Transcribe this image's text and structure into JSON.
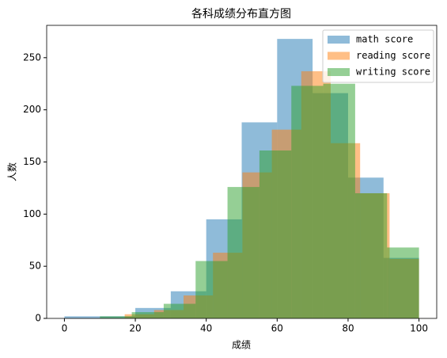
{
  "chart_data": {
    "type": "histogram",
    "title": "各科成绩分布直方图",
    "xlabel": "成绩",
    "ylabel": "人数",
    "alpha": 0.5,
    "legend": "upper right",
    "xlim": [
      -5,
      105
    ],
    "xticks": [
      0,
      20,
      40,
      60,
      80,
      100
    ],
    "ylim": [
      0,
      281
    ],
    "yticks": [
      0,
      50,
      100,
      150,
      200,
      250
    ],
    "series": [
      {
        "name": "math score",
        "color": "#1f77b4",
        "bins": [
          0,
          10,
          20,
          30,
          40,
          50,
          60,
          70,
          80,
          90,
          100
        ],
        "values": [
          2,
          2,
          10,
          26,
          95,
          188,
          268,
          216,
          135,
          58
        ]
      },
      {
        "name": "reading score",
        "color": "#ff7f0e",
        "bins": [
          17,
          25.3,
          33.6,
          41.9,
          50.2,
          58.5,
          66.8,
          75.1,
          83.4,
          91.7,
          100
        ],
        "values": [
          4,
          8,
          22,
          63,
          140,
          181,
          237,
          168,
          120,
          57
        ]
      },
      {
        "name": "writing score",
        "color": "#2ca02c",
        "bins": [
          10,
          19,
          28,
          37,
          46,
          55,
          64,
          73,
          82,
          91,
          100
        ],
        "values": [
          2,
          6,
          14,
          55,
          126,
          161,
          223,
          225,
          120,
          68
        ]
      }
    ]
  }
}
